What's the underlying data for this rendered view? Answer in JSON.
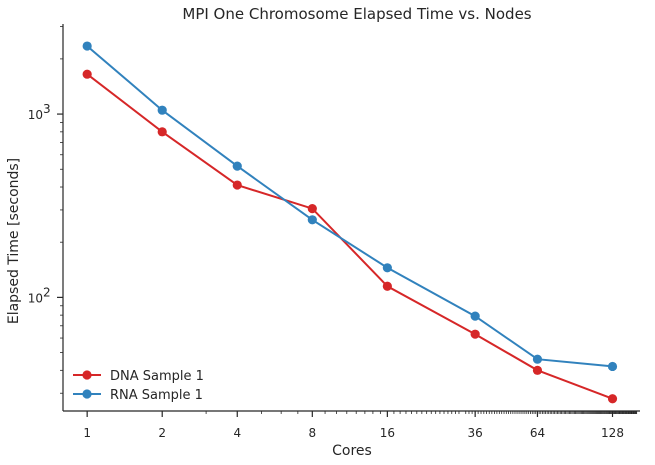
{
  "chart_data": {
    "type": "line",
    "title": "MPI One Chromosome Elapsed Time vs. Nodes",
    "xlabel": "Cores",
    "ylabel": "Elapsed Time [seconds]",
    "x_scale": "log2",
    "y_scale": "log10",
    "categories": [
      "1",
      "2",
      "4",
      "8",
      "16",
      "36",
      "64",
      "128"
    ],
    "x": [
      1,
      2,
      4,
      8,
      16,
      36,
      64,
      128
    ],
    "xlim": [
      0.8,
      165
    ],
    "ylim": [
      24,
      3100
    ],
    "y_tick_labels": [
      {
        "value": 100,
        "base": "10",
        "exp": "2"
      },
      {
        "value": 1000,
        "base": "10",
        "exp": "3"
      }
    ],
    "grid": false,
    "legend_position": "lower-left",
    "series": [
      {
        "name": "DNA Sample 1",
        "color": "#d62728",
        "values": [
          1650,
          800,
          410,
          305,
          115,
          63,
          40,
          28
        ]
      },
      {
        "name": "RNA Sample 1",
        "color": "#3182bd",
        "values": [
          2350,
          1050,
          520,
          265,
          145,
          79,
          46,
          42
        ]
      }
    ]
  }
}
